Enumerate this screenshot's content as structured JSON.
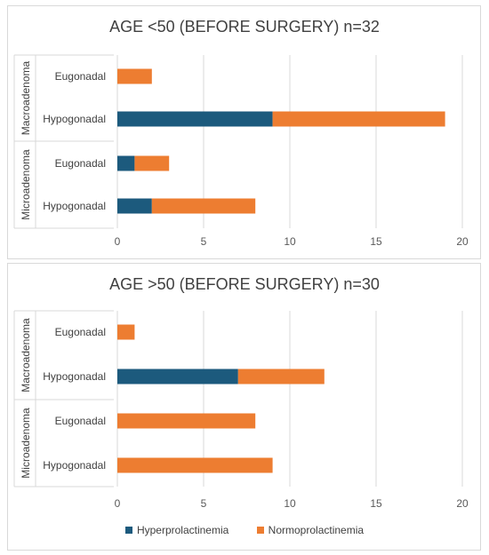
{
  "colors": {
    "hyper": "#1c5a7d",
    "normo": "#ed7d31",
    "grid": "#d9d9d9",
    "frame": "#d9d9d9"
  },
  "legend": {
    "hyper": "Hyperprolactinemia",
    "normo": "Normoprolactinemia"
  },
  "chart_data": [
    {
      "type": "bar",
      "orientation": "horizontal",
      "stacked": true,
      "title": "AGE <50 (BEFORE SURGERY) n=32",
      "groups": [
        {
          "name": "Macroadenoma",
          "categories": [
            "Eugonadal",
            "Hypogonadal"
          ]
        },
        {
          "name": "Microadenoma",
          "categories": [
            "Eugonadal",
            "Hypogonadal"
          ]
        }
      ],
      "categories": [
        "Macroadenoma / Eugonadal",
        "Macroadenoma / Hypogonadal",
        "Microadenoma / Eugonadal",
        "Microadenoma / Hypogonadal"
      ],
      "series": [
        {
          "name": "Hyperprolactinemia",
          "values": [
            0,
            9,
            1,
            2
          ]
        },
        {
          "name": "Normoprolactinemia",
          "values": [
            2,
            10,
            2,
            6
          ]
        }
      ],
      "xlim": [
        0,
        20
      ],
      "xticks": [
        0,
        5,
        10,
        15,
        20
      ],
      "grid": true,
      "legend": "bottom"
    },
    {
      "type": "bar",
      "orientation": "horizontal",
      "stacked": true,
      "title": "AGE >50 (BEFORE SURGERY) n=30",
      "groups": [
        {
          "name": "Macroadenoma",
          "categories": [
            "Eugonadal",
            "Hypogonadal"
          ]
        },
        {
          "name": "Microadenoma",
          "categories": [
            "Eugonadal",
            "Hypogonadal"
          ]
        }
      ],
      "categories": [
        "Macroadenoma / Eugonadal",
        "Macroadenoma / Hypogonadal",
        "Microadenoma / Eugonadal",
        "Microadenoma / Hypogonadal"
      ],
      "series": [
        {
          "name": "Hyperprolactinemia",
          "values": [
            0,
            7,
            0,
            0
          ]
        },
        {
          "name": "Normoprolactinemia",
          "values": [
            1,
            5,
            8,
            9
          ]
        }
      ],
      "xlim": [
        0,
        20
      ],
      "xticks": [
        0,
        5,
        10,
        15,
        20
      ],
      "grid": true,
      "legend": "bottom"
    }
  ]
}
